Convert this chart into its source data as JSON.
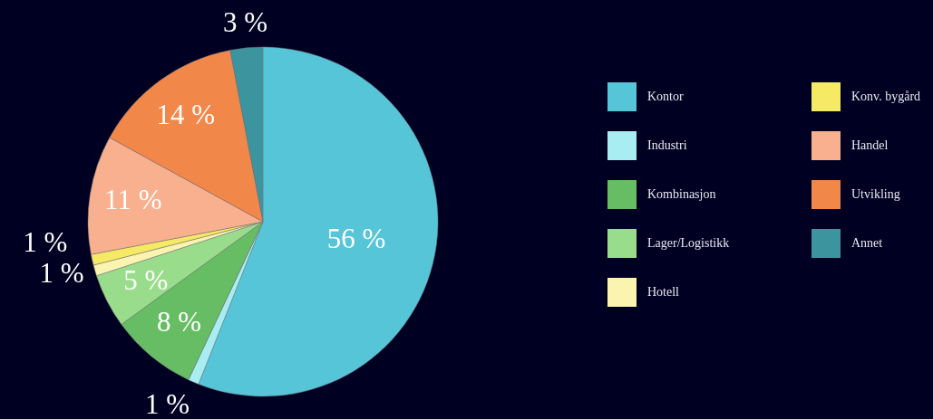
{
  "chart_data": {
    "type": "pie",
    "categories": [
      "Kontor",
      "Industri",
      "Kombinasjon",
      "Lager/Logistikk",
      "Hotell",
      "Konv. bygård",
      "Handel",
      "Utvikling",
      "Annet"
    ],
    "values": [
      56,
      1,
      8,
      5,
      1,
      1,
      11,
      14,
      3
    ],
    "colors": [
      "#56c5d8",
      "#a8edf2",
      "#66bd63",
      "#99dd8c",
      "#fbf4b0",
      "#f6e964",
      "#f8b08e",
      "#f2874a",
      "#3c959e"
    ],
    "value_labels": [
      "56 %",
      "1 %",
      "8 %",
      "5 %",
      "1 %",
      "1 %",
      "11 %",
      "14 %",
      "3 %"
    ],
    "legend": "right"
  }
}
